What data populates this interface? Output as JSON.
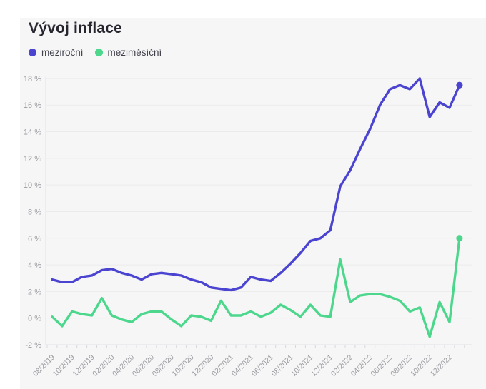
{
  "header": {
    "title": "Vývoj inflace"
  },
  "legend": [
    {
      "label": "meziroční",
      "color": "#4b44d0"
    },
    {
      "label": "meziměsíční",
      "color": "#4cd78d"
    }
  ],
  "colors": {
    "card_background": "#f6f6f7",
    "page_background": "#ffffff",
    "grid": "#ebebeb",
    "axis_line": "#e3e3e6",
    "tick": "#d9d9dc",
    "axis_text": "#9c9ca1",
    "title_text": "#26262e"
  },
  "chart_data": {
    "type": "line",
    "title": "Vývoj inflace",
    "xlabel": "",
    "ylabel": "",
    "ylim": [
      -2,
      18
    ],
    "yticks": [
      18,
      16,
      14,
      12,
      10,
      8,
      6,
      4,
      2,
      0,
      -2
    ],
    "ytick_format": "{v} %",
    "grid": "horizontal",
    "legend_position": "top-left",
    "x": [
      "08/2019",
      "09/2019",
      "10/2019",
      "11/2019",
      "12/2019",
      "01/2020",
      "02/2020",
      "03/2020",
      "04/2020",
      "05/2020",
      "06/2020",
      "07/2020",
      "08/2020",
      "09/2020",
      "10/2020",
      "11/2020",
      "12/2020",
      "01/2021",
      "02/2021",
      "03/2021",
      "04/2021",
      "05/2021",
      "06/2021",
      "07/2021",
      "08/2021",
      "09/2021",
      "10/2021",
      "11/2021",
      "12/2021",
      "01/2022",
      "02/2022",
      "03/2022",
      "04/2022",
      "05/2022",
      "06/2022",
      "07/2022",
      "08/2022",
      "09/2022",
      "10/2022",
      "11/2022",
      "12/2022",
      "01/2023"
    ],
    "x_tick_labels": [
      "08/2019",
      "10/2019",
      "12/2019",
      "02/2020",
      "04/2020",
      "06/2020",
      "08/2020",
      "10/2020",
      "12/2020",
      "02/2021",
      "04/2021",
      "06/2021",
      "08/2021",
      "10/2021",
      "12/2021",
      "02/2022",
      "04/2022",
      "06/2022",
      "08/2022",
      "10/2022",
      "12/2022"
    ],
    "x_label_every": 2,
    "series": [
      {
        "name": "meziroční",
        "color": "#4b44d0",
        "end_dot": true,
        "values": [
          2.9,
          2.7,
          2.7,
          3.1,
          3.2,
          3.6,
          3.7,
          3.4,
          3.2,
          2.9,
          3.3,
          3.4,
          3.3,
          3.2,
          2.9,
          2.7,
          2.3,
          2.2,
          2.1,
          2.3,
          3.1,
          2.9,
          2.8,
          3.4,
          4.1,
          4.9,
          5.8,
          6.0,
          6.6,
          9.9,
          11.1,
          12.7,
          14.2,
          16.0,
          17.2,
          17.5,
          17.2,
          18.0,
          15.1,
          16.2,
          15.8,
          17.5
        ]
      },
      {
        "name": "meziměsíční",
        "color": "#4cd78d",
        "end_dot": true,
        "values": [
          0.1,
          -0.6,
          0.5,
          0.3,
          0.2,
          1.5,
          0.2,
          -0.1,
          -0.3,
          0.3,
          0.5,
          0.5,
          -0.1,
          -0.6,
          0.2,
          0.1,
          -0.2,
          1.3,
          0.2,
          0.2,
          0.5,
          0.1,
          0.4,
          1.0,
          0.6,
          0.1,
          1.0,
          0.2,
          0.1,
          4.4,
          1.2,
          1.7,
          1.8,
          1.8,
          1.6,
          1.3,
          0.5,
          0.8,
          -1.4,
          1.2,
          -0.3,
          6.0
        ]
      }
    ]
  }
}
